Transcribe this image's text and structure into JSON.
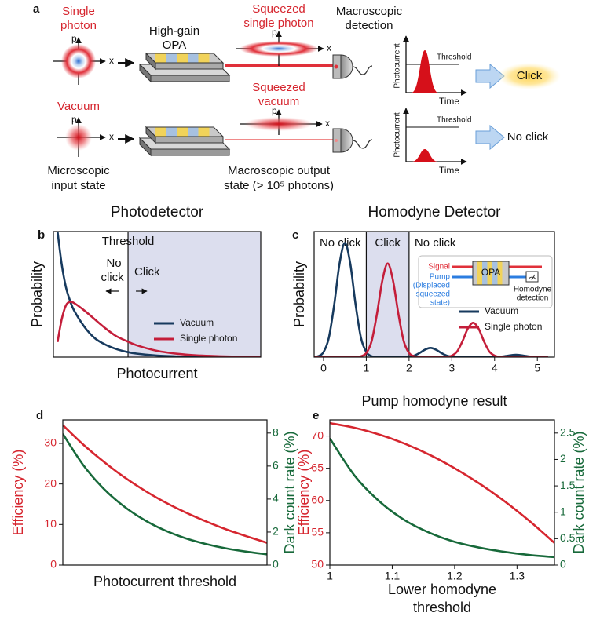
{
  "figure_a": {
    "label": "a",
    "single_photon": [
      "Single",
      "photon"
    ],
    "opa": [
      "High-gain",
      "OPA"
    ],
    "squeezed_single_photon": [
      "Squeezed",
      "single photon"
    ],
    "detection": [
      "Macroscopic",
      "detection"
    ],
    "vacuum": "Vacuum",
    "squeezed_vacuum": [
      "Squeezed",
      "vacuum"
    ],
    "input_state": [
      "Microscopic",
      "input state"
    ],
    "output_state": [
      "Macroscopic output",
      "state (> 10⁵ photons)"
    ],
    "p": "p",
    "x": "x",
    "threshold": "Threshold",
    "photocurrent": "Photocurrent",
    "time": "Time",
    "click": "Click",
    "no_click": "No click"
  },
  "chart_data": [
    {
      "panel": "b",
      "type": "line",
      "title": "Photodetector",
      "xlabel": "Photocurrent",
      "ylabel": "Probability",
      "x": [
        0.02,
        0.04,
        0.06,
        0.08,
        0.1,
        0.15,
        0.2,
        0.25,
        0.3,
        0.35,
        0.4,
        0.5,
        0.6,
        0.7,
        0.8,
        0.9,
        1.0
      ],
      "xlim": [
        0,
        1
      ],
      "ylim": [
        0,
        1
      ],
      "threshold": 0.36,
      "annotations": {
        "threshold": "Threshold",
        "no_click": [
          "No",
          "click"
        ],
        "click": "Click"
      },
      "legend": "lower right",
      "series": [
        {
          "name": "Vacuum",
          "color": "#173a5e",
          "values": [
            1.0,
            0.74,
            0.56,
            0.45,
            0.37,
            0.24,
            0.15,
            0.1,
            0.066,
            0.043,
            0.028,
            0.012,
            0.005,
            0.002,
            0.001,
            0,
            0
          ]
        },
        {
          "name": "Single photon",
          "color": "#c41e3a",
          "values": [
            0.12,
            0.3,
            0.41,
            0.44,
            0.43,
            0.37,
            0.3,
            0.23,
            0.17,
            0.13,
            0.095,
            0.05,
            0.026,
            0.013,
            0.007,
            0.003,
            0.001
          ]
        }
      ]
    },
    {
      "panel": "c",
      "type": "line",
      "title": "Homodyne Detector",
      "xlabel": "Pump homodyne result",
      "ylabel": "Probability",
      "x": [
        -0.25,
        -0.125,
        0,
        0.125,
        0.25,
        0.375,
        0.5,
        0.625,
        0.75,
        0.875,
        1,
        1.125,
        1.25,
        1.375,
        1.5,
        1.625,
        1.75,
        1.875,
        2,
        2.125,
        2.25,
        2.375,
        2.5,
        2.625,
        2.75,
        2.875,
        3,
        3.125,
        3.25,
        3.375,
        3.5,
        3.625,
        3.75,
        3.875,
        4,
        4.125,
        4.25,
        4.375,
        4.5,
        4.625,
        4.75,
        4.875,
        5,
        5.125,
        5.25
      ],
      "xlim": [
        -0.22,
        5.4
      ],
      "xticks": [
        0,
        1,
        2,
        3,
        4,
        5
      ],
      "ylim": [
        0,
        1.1
      ],
      "click_region": [
        1,
        2
      ],
      "regions": [
        "No click",
        "Click",
        "No click"
      ],
      "inset": {
        "signal": "Signal",
        "opa": "OPA",
        "pump": [
          "Pump",
          "(Displaced",
          "squeezed",
          "state)"
        ],
        "detection": [
          "Homodyne",
          "detection"
        ]
      },
      "legend": "right",
      "series": [
        {
          "name": "Vacuum",
          "color": "#173a5e",
          "values": [
            0,
            0.008,
            0.044,
            0.17,
            0.46,
            0.82,
            1,
            0.82,
            0.46,
            0.17,
            0.044,
            0.008,
            0,
            0,
            0,
            0,
            0,
            0,
            0.004,
            0.014,
            0.037,
            0.066,
            0.08,
            0.066,
            0.037,
            0.014,
            0.004,
            0,
            0,
            0,
            0,
            0,
            0,
            0,
            0.001,
            0.003,
            0.009,
            0.016,
            0.02,
            0.016,
            0.009,
            0.003,
            0.001,
            0,
            0
          ]
        },
        {
          "name": "Single photon",
          "color": "#c41e3a",
          "values": [
            0,
            0,
            0,
            0,
            0,
            0,
            0,
            0,
            0,
            0.007,
            0.036,
            0.14,
            0.38,
            0.67,
            0.82,
            0.67,
            0.38,
            0.14,
            0.036,
            0.007,
            0,
            0,
            0,
            0,
            0,
            0.002,
            0.013,
            0.05,
            0.14,
            0.25,
            0.3,
            0.25,
            0.14,
            0.05,
            0.013,
            0.002,
            0,
            0,
            0,
            0,
            0,
            0,
            0,
            0,
            0
          ]
        }
      ]
    },
    {
      "panel": "d",
      "type": "line",
      "xlabel": "Photocurrent threshold",
      "ylabel": "Efficiency (%)",
      "y2label": "Dark count rate (%)",
      "x": [
        0,
        0.1,
        0.2,
        0.3,
        0.4,
        0.5,
        0.6,
        0.7,
        0.8,
        0.9,
        1.0
      ],
      "xlim": [
        0,
        1
      ],
      "ylim": [
        0,
        35.8
      ],
      "yticks": [
        0,
        10,
        20,
        30
      ],
      "y2lim": [
        0,
        8.8
      ],
      "y2ticks": [
        0,
        2,
        4,
        6,
        8
      ],
      "series": [
        {
          "color": "#d6262f",
          "values": [
            34.5,
            29.7,
            25.5,
            21.7,
            18.4,
            15.5,
            13,
            10.8,
            8.8,
            7.1,
            5.5
          ]
        },
        {
          "color": "#17693a",
          "axis": "y2",
          "values": [
            7.95,
            6.06,
            4.63,
            3.55,
            2.73,
            2.1,
            1.63,
            1.28,
            1.01,
            0.81,
            0.65
          ]
        }
      ]
    },
    {
      "panel": "e",
      "type": "line",
      "xlabel": [
        "Lower homodyne",
        "threshold"
      ],
      "ylabel": "Efficiency (%)",
      "y2label": "Dark count rate (%)",
      "x": [
        1,
        1.04,
        1.08,
        1.12,
        1.16,
        1.2,
        1.24,
        1.28,
        1.32,
        1.36
      ],
      "xlim": [
        1,
        1.36
      ],
      "xticks": [
        1,
        1.1,
        1.2,
        1.3
      ],
      "ylim": [
        50,
        72.5
      ],
      "yticks": [
        50,
        55,
        60,
        65,
        70
      ],
      "y2lim": [
        0,
        2.75
      ],
      "y2ticks": [
        0,
        0.5,
        1,
        1.5,
        2,
        2.5
      ],
      "series": [
        {
          "color": "#d6262f",
          "values": [
            72,
            71.27,
            70.2,
            68.81,
            67.08,
            65.01,
            62.62,
            59.89,
            56.82,
            53.43
          ]
        },
        {
          "color": "#17693a",
          "axis": "y2",
          "values": [
            2.4,
            1.69,
            1.2,
            0.85,
            0.61,
            0.44,
            0.33,
            0.25,
            0.19,
            0.15
          ]
        }
      ]
    }
  ]
}
